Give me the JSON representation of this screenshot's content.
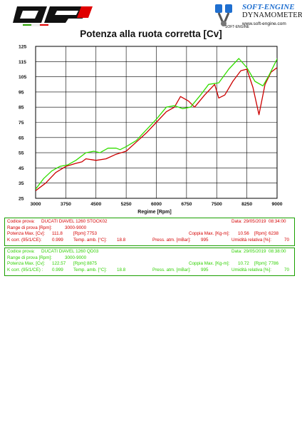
{
  "brand": {
    "name": "SOFT-ENGINE",
    "subtitle": "DYNAMOMETERS",
    "url": "www.soft-engine.com",
    "icon_caption": "SOFT-ENGINE"
  },
  "chart_data": {
    "type": "line",
    "title": "Potenza alla ruota corretta [Cv]",
    "xlabel": "Regime [Rpm]",
    "ylabel": "",
    "xlim": [
      3000,
      9000
    ],
    "ylim": [
      25,
      125
    ],
    "x_ticks": [
      3000,
      3750,
      4500,
      5250,
      6000,
      6750,
      7500,
      8250,
      9000
    ],
    "y_ticks": [
      25,
      35,
      45,
      55,
      65,
      75,
      85,
      95,
      105,
      115,
      125
    ],
    "grid": true,
    "background": "#ffffff",
    "grid_color": "#000000",
    "series": [
      {
        "name": "DUCATI DIAVEL 1260 STOCK02",
        "color": "#cc0000",
        "points": [
          [
            3000,
            30
          ],
          [
            3250,
            35
          ],
          [
            3500,
            42
          ],
          [
            3750,
            46
          ],
          [
            4000,
            48
          ],
          [
            4150,
            49
          ],
          [
            4250,
            51
          ],
          [
            4500,
            50
          ],
          [
            4750,
            51
          ],
          [
            5000,
            54
          ],
          [
            5250,
            56
          ],
          [
            5500,
            62
          ],
          [
            5750,
            68
          ],
          [
            6000,
            75
          ],
          [
            6250,
            82
          ],
          [
            6450,
            85
          ],
          [
            6600,
            92
          ],
          [
            6800,
            89
          ],
          [
            6950,
            85
          ],
          [
            7200,
            93
          ],
          [
            7450,
            100
          ],
          [
            7550,
            91
          ],
          [
            7700,
            93
          ],
          [
            7900,
            102
          ],
          [
            8100,
            109
          ],
          [
            8250,
            110
          ],
          [
            8400,
            98
          ],
          [
            8550,
            80
          ],
          [
            8700,
            100
          ],
          [
            8850,
            108
          ],
          [
            9000,
            111
          ],
          [
            9150,
            109
          ],
          [
            9250,
            105
          ]
        ]
      },
      {
        "name": "DUCATI DIAVEL 1260 QD03",
        "color": "#33dd00",
        "points": [
          [
            3000,
            31
          ],
          [
            3200,
            38
          ],
          [
            3400,
            43
          ],
          [
            3600,
            46
          ],
          [
            3800,
            47
          ],
          [
            4000,
            50
          ],
          [
            4250,
            55
          ],
          [
            4450,
            56
          ],
          [
            4600,
            55
          ],
          [
            4800,
            58
          ],
          [
            5000,
            58
          ],
          [
            5100,
            57
          ],
          [
            5250,
            59
          ],
          [
            5500,
            63
          ],
          [
            5750,
            70
          ],
          [
            6000,
            77
          ],
          [
            6250,
            85
          ],
          [
            6450,
            86
          ],
          [
            6650,
            84
          ],
          [
            6850,
            85
          ],
          [
            7100,
            93
          ],
          [
            7300,
            100
          ],
          [
            7550,
            101
          ],
          [
            7800,
            110
          ],
          [
            8050,
            117
          ],
          [
            8250,
            111
          ],
          [
            8450,
            102
          ],
          [
            8650,
            99
          ],
          [
            8800,
            106
          ],
          [
            8950,
            114
          ],
          [
            9100,
            122
          ],
          [
            9250,
            121
          ]
        ]
      }
    ]
  },
  "runs": [
    {
      "color": "#d40000",
      "code_label": "Codice prova:",
      "code": "DUCATI DIAVEL 1260 STOCK02",
      "date_label": "Data:",
      "date": "29/05/2019",
      "time": "08:34:00",
      "range_label": "Range di prova [Rpm]:",
      "range": "3000-9000",
      "power_label": "Potenza Max. [Cv]:",
      "power": "111.8",
      "power_rpm_label": "[Rpm]:",
      "power_rpm": "7753",
      "torque_label": "Coppia Max. [Kg-m]:",
      "torque": "10.56",
      "torque_rpm_label": "[Rpm]:",
      "torque_rpm": "6238",
      "kcorr_label": "K corr. (95/1/CE):",
      "kcorr": "0.999",
      "temp_label": "Temp. amb. [°C]:",
      "temp": "18.8",
      "press_label": "Press. atm. [mBar]:",
      "press": "995",
      "hum_label": "Umidità relativa [%]:",
      "hum": "70"
    },
    {
      "color": "#2ed000",
      "code_label": "Codice prova:",
      "code": "DUCATI DIAVEL 1260 QD03",
      "date_label": "Data:",
      "date": "29/05/2019",
      "time": "08:38:00",
      "range_label": "Range di prova [Rpm]:",
      "range": "3000-9000",
      "power_label": "Potenza Max. [Cv]:",
      "power": "122.57",
      "power_rpm_label": "[Rpm]:",
      "power_rpm": "8875",
      "torque_label": "Coppia Max. [Kg-m]:",
      "torque": "10.72",
      "torque_rpm_label": "[Rpm]:",
      "torque_rpm": "7786",
      "kcorr_label": "K corr. (95/1/CE) :",
      "kcorr": "0.999",
      "temp_label": "Temp. amb. [°C]:",
      "temp": "18.8",
      "press_label": "Press. atm. [mBar]:",
      "press": "995",
      "hum_label": "Umidità relativa [%]:",
      "hum": "70"
    }
  ]
}
